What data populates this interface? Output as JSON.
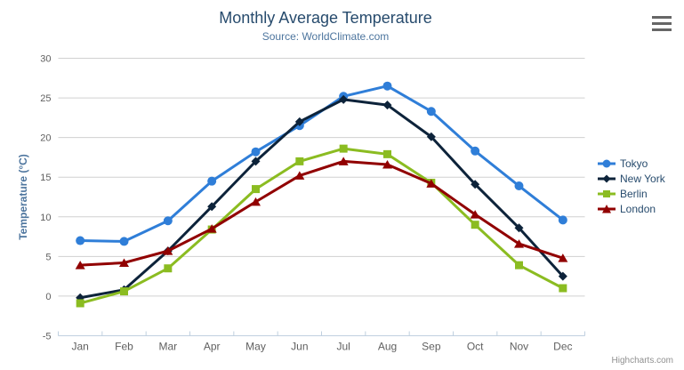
{
  "header": {
    "title": "Monthly Average Temperature",
    "subtitle": "Source: WorldClimate.com"
  },
  "toolbar": {
    "menu_icon": "hamburger-menu"
  },
  "credits": {
    "label": "Highcharts.com"
  },
  "chart_data": {
    "type": "line",
    "title": "Monthly Average Temperature",
    "subtitle": "Source: WorldClimate.com",
    "categories": [
      "Jan",
      "Feb",
      "Mar",
      "Apr",
      "May",
      "Jun",
      "Jul",
      "Aug",
      "Sep",
      "Oct",
      "Nov",
      "Dec"
    ],
    "xlabel": "",
    "ylabel": "Temperature (°C)",
    "ylim": [
      -5,
      30
    ],
    "ytick_interval": 5,
    "grid": true,
    "legend_position": "right",
    "series": [
      {
        "name": "Tokyo",
        "color": "#2f7ed8",
        "marker": "circle",
        "values": [
          7.0,
          6.9,
          9.5,
          14.5,
          18.2,
          21.5,
          25.2,
          26.5,
          23.3,
          18.3,
          13.9,
          9.6
        ]
      },
      {
        "name": "New York",
        "color": "#0d233a",
        "marker": "diamond",
        "values": [
          -0.2,
          0.8,
          5.7,
          11.3,
          17.0,
          22.0,
          24.8,
          24.1,
          20.1,
          14.1,
          8.6,
          2.5
        ]
      },
      {
        "name": "Berlin",
        "color": "#8bbc21",
        "marker": "square",
        "values": [
          -0.9,
          0.6,
          3.5,
          8.4,
          13.5,
          17.0,
          18.6,
          17.9,
          14.3,
          9.0,
          3.9,
          1.0
        ]
      },
      {
        "name": "London",
        "color": "#910000",
        "marker": "triangle",
        "values": [
          3.9,
          4.2,
          5.7,
          8.5,
          11.9,
          15.2,
          17.0,
          16.6,
          14.2,
          10.3,
          6.6,
          4.8
        ]
      }
    ]
  },
  "style": {
    "grid_color": "#d0d0d0",
    "axis_line_color": "#c0d0e0",
    "tick_color": "#c0d0e0",
    "axis_label_color": "#606060",
    "axis_title_color": "#4d759e",
    "title_color": "#274b6d",
    "subtitle_color": "#4d759e",
    "legend_text_color": "#274b6d",
    "credits_color": "#909090",
    "menu_icon_color": "#666666",
    "background_color": "#ffffff"
  }
}
